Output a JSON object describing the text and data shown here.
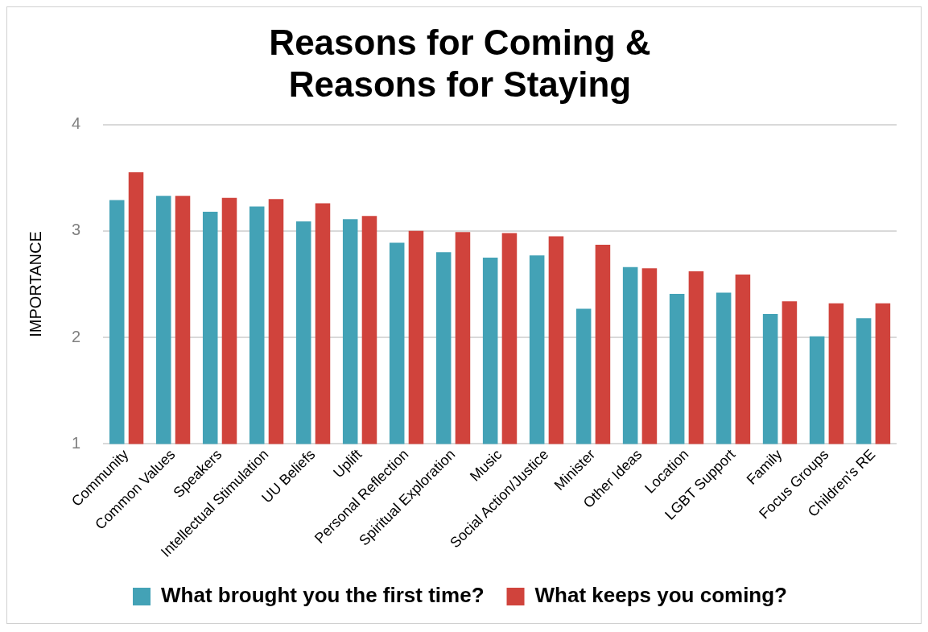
{
  "chart_data": {
    "type": "bar",
    "title": "Reasons for Coming &\nReasons for Staying",
    "ylabel": "IMPORTANCE",
    "categories": [
      "Community",
      "Common Values",
      "Speakers",
      "Intellectual Stimulation",
      "UU Beliefs",
      "Uplift",
      "Personal Reflection",
      "Spiritual Exploration",
      "Music",
      "Social Action/Justice",
      "Minister",
      "Other Ideas",
      "Location",
      "LGBT Support",
      "Family",
      "Focus Groups",
      "Children's RE"
    ],
    "series": [
      {
        "name": "What brought you the first time?",
        "color": "#43a2b6",
        "values": [
          3.29,
          3.33,
          3.18,
          3.23,
          3.09,
          3.11,
          2.89,
          2.8,
          2.75,
          2.77,
          2.27,
          2.66,
          2.41,
          2.42,
          2.22,
          2.01,
          2.18
        ]
      },
      {
        "name": "What keeps you coming?",
        "color": "#d0433c",
        "values": [
          3.55,
          3.33,
          3.31,
          3.3,
          3.26,
          3.14,
          3.0,
          2.99,
          2.98,
          2.95,
          2.87,
          2.65,
          2.62,
          2.59,
          2.34,
          2.32,
          2.32
        ]
      }
    ],
    "ylim": [
      1,
      4
    ],
    "yticks": [
      1,
      2,
      3,
      4
    ],
    "grid": "y",
    "legend": "bottom"
  }
}
